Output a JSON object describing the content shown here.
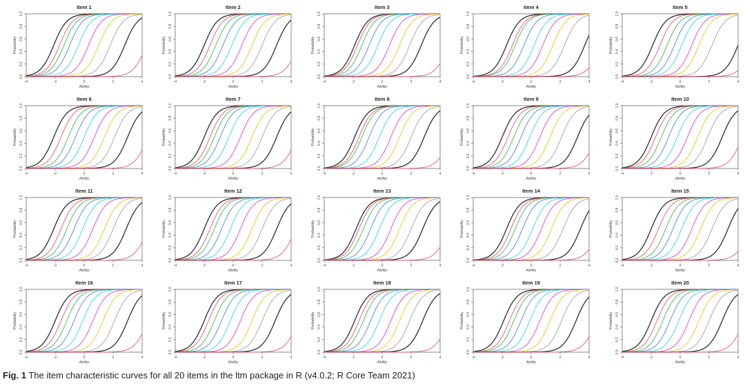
{
  "figure": {
    "caption_label": "Fig. 1",
    "caption_text": "The item characteristic curves for all 20 items in the ltm package in R (v4.0.2; R Core Team 2021)"
  },
  "chart_data": {
    "type": "line",
    "layout": "5x4 small multiples",
    "xlabel": "Ability",
    "ylabel": "Probability",
    "xlim": [
      -4,
      4
    ],
    "ylim": [
      0,
      1
    ],
    "x_ticks": [
      "-4",
      "-2",
      "0",
      "2",
      "4"
    ],
    "y_ticks": [
      "0.0",
      "0.2",
      "0.4",
      "0.6",
      "0.8",
      "1.0"
    ],
    "curve_colors": [
      "#2b2b2b",
      "#e8506a",
      "#3cb44b",
      "#4a7fd6",
      "#35d0d8",
      "#d63fc4",
      "#e6c220",
      "#9e9e9e",
      "#2b2b2b",
      "#e8506a"
    ],
    "panels": [
      {
        "title": "Item 1",
        "thresholds": [
          -2.1,
          -1.7,
          -1.4,
          -1.0,
          -0.4,
          0.3,
          1.0,
          1.8,
          2.8,
          4.3
        ]
      },
      {
        "title": "Item 2",
        "thresholds": [
          -2.0,
          -1.6,
          -1.2,
          -0.7,
          -0.1,
          0.6,
          1.3,
          2.0,
          3.0,
          4.5
        ]
      },
      {
        "title": "Item 3",
        "thresholds": [
          -1.9,
          -1.7,
          -1.4,
          -0.9,
          -0.3,
          0.5,
          1.2,
          1.9,
          2.7,
          4.6
        ]
      },
      {
        "title": "Item 4",
        "thresholds": [
          -1.7,
          -1.3,
          -1.1,
          -0.5,
          0.2,
          0.8,
          1.5,
          2.3,
          3.7,
          4.8
        ]
      },
      {
        "title": "Item 5",
        "thresholds": [
          -1.9,
          -1.4,
          -0.9,
          -0.4,
          0.1,
          0.8,
          1.3,
          2.2,
          4.0,
          5.0
        ]
      },
      {
        "title": "Item 6",
        "thresholds": [
          -2.1,
          -1.6,
          -1.1,
          -0.6,
          0.0,
          0.7,
          1.4,
          2.1,
          3.0,
          4.4
        ]
      },
      {
        "title": "Item 7",
        "thresholds": [
          -2.0,
          -1.6,
          -1.3,
          -0.9,
          -0.3,
          0.5,
          1.3,
          2.0,
          3.0,
          4.4
        ]
      },
      {
        "title": "Item 8",
        "thresholds": [
          -1.9,
          -1.6,
          -1.4,
          -0.9,
          -0.2,
          0.6,
          1.2,
          2.0,
          2.9,
          4.7
        ]
      },
      {
        "title": "Item 9",
        "thresholds": [
          -2.0,
          -1.6,
          -1.2,
          -0.7,
          -0.1,
          0.6,
          1.3,
          2.1,
          3.2,
          4.5
        ]
      },
      {
        "title": "Item 10",
        "thresholds": [
          -2.0,
          -1.7,
          -1.3,
          -0.8,
          -0.2,
          0.5,
          1.2,
          1.9,
          2.9,
          4.3
        ]
      },
      {
        "title": "Item 11",
        "thresholds": [
          -2.1,
          -1.6,
          -1.2,
          -0.7,
          -0.1,
          0.6,
          1.4,
          2.0,
          2.9,
          4.4
        ]
      },
      {
        "title": "Item 12",
        "thresholds": [
          -2.0,
          -1.6,
          -1.3,
          -0.8,
          -0.2,
          0.5,
          1.3,
          2.0,
          3.0,
          4.3
        ]
      },
      {
        "title": "Item 13",
        "thresholds": [
          -1.8,
          -1.6,
          -1.3,
          -0.8,
          -0.2,
          0.6,
          1.2,
          2.0,
          2.8,
          4.6
        ]
      },
      {
        "title": "Item 14",
        "thresholds": [
          -1.7,
          -1.4,
          -1.1,
          -0.6,
          0.1,
          0.7,
          1.4,
          2.2,
          3.4,
          4.7
        ]
      },
      {
        "title": "Item 15",
        "thresholds": [
          -2.0,
          -1.5,
          -1.0,
          -0.5,
          0.1,
          0.8,
          1.4,
          2.2,
          3.3,
          4.8
        ]
      },
      {
        "title": "Item 16",
        "thresholds": [
          -2.0,
          -1.6,
          -1.2,
          -0.7,
          -0.1,
          0.6,
          1.3,
          2.1,
          3.0,
          4.4
        ]
      },
      {
        "title": "Item 17",
        "thresholds": [
          -2.0,
          -1.7,
          -1.3,
          -0.8,
          -0.2,
          0.5,
          1.3,
          2.0,
          2.9,
          4.5
        ]
      },
      {
        "title": "Item 18",
        "thresholds": [
          -1.9,
          -1.6,
          -1.3,
          -0.8,
          -0.2,
          0.6,
          1.2,
          1.9,
          2.8,
          4.6
        ]
      },
      {
        "title": "Item 19",
        "thresholds": [
          -1.9,
          -1.5,
          -1.2,
          -0.7,
          -0.1,
          0.6,
          1.3,
          2.1,
          3.1,
          4.5
        ]
      },
      {
        "title": "Item 20",
        "thresholds": [
          -2.0,
          -1.6,
          -1.2,
          -0.7,
          -0.1,
          0.6,
          1.3,
          2.0,
          2.9,
          4.4
        ]
      }
    ]
  }
}
